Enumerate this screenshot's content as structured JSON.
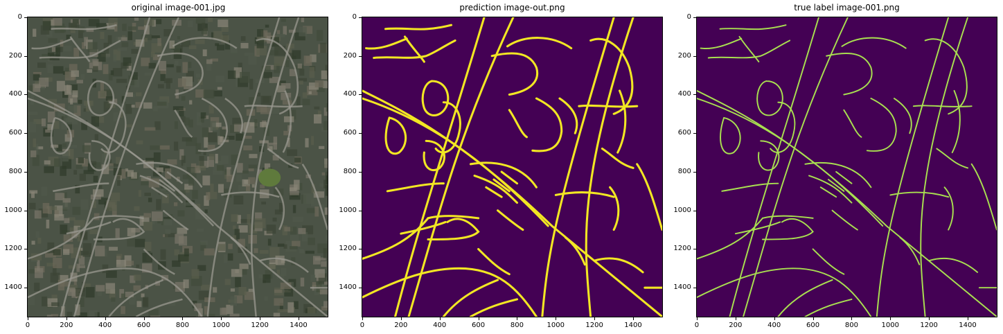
{
  "panels": [
    {
      "title": "original image-001.jpg",
      "kind": "satellite"
    },
    {
      "title": "prediction image-out.png",
      "kind": "prediction"
    },
    {
      "title": "true label image-001.png",
      "kind": "label"
    }
  ],
  "axes": {
    "xlim": [
      0,
      1550
    ],
    "ylim": [
      1550,
      0
    ],
    "xticks": [
      "0",
      "200",
      "400",
      "600",
      "800",
      "1000",
      "1200",
      "1400"
    ],
    "yticks": [
      "0",
      "200",
      "400",
      "600",
      "800",
      "1000",
      "1200",
      "1400"
    ]
  },
  "colors": {
    "background": "#440154",
    "prediction_road": "#f2e723",
    "label_road": "#a9e050",
    "satellite_base": "#4b5346"
  }
}
